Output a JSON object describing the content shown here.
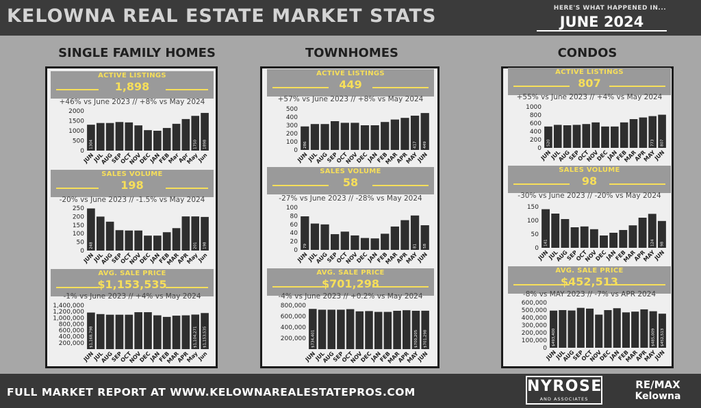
{
  "header": {
    "title": "KELOWNA REAL ESTATE MARKET STATS",
    "subtitle": "HERE'S WHAT HAPPENED IN...",
    "period": "JUNE 2024"
  },
  "footer": {
    "report_text": "FULL MARKET REPORT AT WWW.KELOWNAREALESTATEPROS.COM",
    "brand_name": "NYROSE",
    "brand_sub": "AND ASSOCIATES",
    "remax_line1": "RE/MAX",
    "remax_line2": "Kelowna"
  },
  "colors": {
    "bar": "#2e2e2e",
    "accent": "#f7df5a",
    "header_box": "#9a9a9a",
    "panel_bg": "#efefef"
  },
  "columns": [
    {
      "title": "SINGLE FAMILY HOMES",
      "sections": [
        {
          "label": "ACTIVE LISTINGS",
          "value": "1,898",
          "comparison": "+46% vs June 2023 // +8% vs May 2024"
        },
        {
          "label": "SALES VOLUME",
          "value": "198",
          "comparison": "-20% vs  June 2023 // -1.5% vs May 2024"
        },
        {
          "label": "AVG. SALE PRICE",
          "value": "$1,153,535",
          "comparison": "-1% vs  June 2023 // +4% vs May 2024"
        }
      ]
    },
    {
      "title": "TOWNHOMES",
      "sections": [
        {
          "label": "ACTIVE LISTINGS",
          "value": "449",
          "comparison": "+57% vs June 2023 // +8% vs May 2024"
        },
        {
          "label": "SALES VOLUME",
          "value": "58",
          "comparison": "-27% vs  June 2023 // -28% vs May 2024"
        },
        {
          "label": "AVG. SALE PRICE",
          "value": "$701,298",
          "comparison": "-4% vs  June 2023 // +0.2% vs May 2024"
        }
      ]
    },
    {
      "title": "CONDOS",
      "sections": [
        {
          "label": "ACTIVE LISTINGS",
          "value": "807",
          "comparison": "+55% vs June 2023 // +4% vs May 2024"
        },
        {
          "label": "SALES VOLUME",
          "value": "98",
          "comparison": "-30% vs  June 2023 // -20% vs May 2024"
        },
        {
          "label": "AVG. SALE PRICE",
          "value": "$452,513",
          "comparison": "-8% vs  MAY 2023 // -7% vs APR 2024"
        }
      ]
    }
  ],
  "chart_data": [
    {
      "type": "bar",
      "group": "SINGLE FAMILY HOMES",
      "metric": "ACTIVE LISTINGS",
      "categories": [
        "JUN",
        "JUL",
        "AUG",
        "SEP",
        "OCT",
        "NOV",
        "DEC",
        "JAN",
        "FEB",
        "Mar",
        "Apr",
        "May",
        "Jun"
      ],
      "values": [
        1304,
        1390,
        1390,
        1440,
        1420,
        1270,
        1030,
        1000,
        1140,
        1350,
        1590,
        1750,
        1898
      ],
      "bar_labels": [
        "1304",
        "",
        "",
        "",
        "",
        "",
        "",
        "",
        "",
        "",
        "",
        "1750",
        "1898"
      ],
      "yticks": [
        0,
        500,
        1000,
        1500,
        2000
      ],
      "ytick_labels": [
        "0",
        "500",
        "1000",
        "1500",
        "2000"
      ],
      "ylim": [
        0,
        2000
      ]
    },
    {
      "type": "bar",
      "group": "SINGLE FAMILY HOMES",
      "metric": "SALES VOLUME",
      "categories": [
        "JUN",
        "JUL",
        "AUG",
        "SEP",
        "OCT",
        "NOV",
        "DEC",
        "JAN",
        "FEB",
        "MAR",
        "APR",
        "May",
        "Jun"
      ],
      "values": [
        248,
        200,
        170,
        120,
        118,
        118,
        88,
        88,
        108,
        132,
        201,
        201,
        198
      ],
      "bar_labels": [
        "248",
        "",
        "",
        "",
        "",
        "",
        "",
        "",
        "",
        "",
        "",
        "201",
        "198"
      ],
      "yticks": [
        0,
        50,
        100,
        150,
        200,
        250
      ],
      "ytick_labels": [
        "0",
        "50",
        "100",
        "150",
        "200",
        "250"
      ],
      "ylim": [
        0,
        250
      ]
    },
    {
      "type": "bar",
      "group": "SINGLE FAMILY HOMES",
      "metric": "AVG. SALE PRICE",
      "categories": [
        "JUN",
        "JUL",
        "AUG",
        "SEP",
        "OCT",
        "NOV",
        "DEC",
        "JAN",
        "FEB",
        "MAR",
        "APR",
        "May",
        "Jun"
      ],
      "values": [
        1168798,
        1120000,
        1100000,
        1100000,
        1100000,
        1180000,
        1180000,
        1080000,
        1030000,
        1070000,
        1080000,
        1104271,
        1153535
      ],
      "bar_labels": [
        "$1,168,798",
        "",
        "",
        "",
        "",
        "",
        "",
        "",
        "",
        "",
        "",
        "$1,104,271",
        "$1,153,535"
      ],
      "yticks": [
        200000,
        400000,
        600000,
        800000,
        1000000,
        1200000,
        1400000
      ],
      "ytick_labels": [
        "200,000",
        "400,000",
        "600,000",
        "800,000",
        "1,000,000",
        "1,200,000",
        "1,400,000"
      ],
      "ylim": [
        0,
        1400000
      ]
    },
    {
      "type": "bar",
      "group": "TOWNHOMES",
      "metric": "ACTIVE LISTINGS",
      "categories": [
        "JUN",
        "JUL",
        "AUG",
        "SEP",
        "OCT",
        "NOV",
        "DEC",
        "JAN",
        "FEB",
        "MAR",
        "APR",
        "MAY",
        "JUN"
      ],
      "values": [
        286,
        315,
        315,
        350,
        330,
        330,
        300,
        300,
        340,
        370,
        390,
        417,
        449
      ],
      "bar_labels": [
        "286",
        "",
        "",
        "",
        "",
        "",
        "",
        "",
        "",
        "",
        "",
        "417",
        "449"
      ],
      "yticks": [
        0,
        100,
        200,
        300,
        400,
        500
      ],
      "ytick_labels": [
        "0",
        "100",
        "200",
        "300",
        "400",
        "500"
      ],
      "ylim": [
        0,
        500
      ]
    },
    {
      "type": "bar",
      "group": "TOWNHOMES",
      "metric": "SALES VOLUME",
      "categories": [
        "JUN",
        "JUL",
        "AUG",
        "SEP",
        "OCT",
        "NOV",
        "DEC",
        "JAN",
        "FEB",
        "MAR",
        "APR",
        "MAY",
        "JUN"
      ],
      "values": [
        79,
        62,
        60,
        37,
        43,
        34,
        28,
        27,
        38,
        55,
        70,
        81,
        58
      ],
      "bar_labels": [
        "79",
        "",
        "",
        "",
        "",
        "",
        "",
        "",
        "",
        "",
        "",
        "81",
        "58"
      ],
      "yticks": [
        0,
        20,
        40,
        60,
        80,
        100
      ],
      "ytick_labels": [
        "0",
        "20",
        "40",
        "60",
        "80",
        "100"
      ],
      "ylim": [
        0,
        100
      ]
    },
    {
      "type": "bar",
      "group": "TOWNHOMES",
      "metric": "AVG. SALE PRICE",
      "categories": [
        "JUN",
        "JUL",
        "AUG",
        "SEP",
        "OCT",
        "NOV",
        "DEC",
        "JAN",
        "FEB",
        "MAR",
        "APR",
        "MAY",
        "JUN"
      ],
      "values": [
        734401,
        720000,
        720000,
        720000,
        730000,
        690000,
        695000,
        680000,
        680000,
        700000,
        710000,
        700205,
        701298
      ],
      "bar_labels": [
        "$734,401",
        "",
        "",
        "",
        "",
        "",
        "",
        "",
        "",
        "",
        "",
        "$700,205",
        "$701,298"
      ],
      "yticks": [
        200000,
        400000,
        600000,
        800000
      ],
      "ytick_labels": [
        "200,000",
        "400,000",
        "600,000",
        "800,000"
      ],
      "ylim": [
        0,
        800000
      ]
    },
    {
      "type": "bar",
      "group": "CONDOS",
      "metric": "ACTIVE LISTINGS",
      "categories": [
        "JUN",
        "JUL",
        "AUG",
        "SEP",
        "OCT",
        "NOV",
        "DEC",
        "JAN",
        "FEB",
        "MAR",
        "APR",
        "MAY",
        "JUN"
      ],
      "values": [
        520,
        560,
        550,
        560,
        580,
        620,
        520,
        520,
        620,
        700,
        740,
        773,
        807
      ],
      "bar_labels": [
        "520",
        "",
        "",
        "",
        "",
        "",
        "",
        "",
        "",
        "",
        "",
        "773",
        "807"
      ],
      "yticks": [
        0,
        200,
        400,
        600,
        800,
        1000
      ],
      "ytick_labels": [
        "0",
        "200",
        "400",
        "600",
        "800",
        "1000"
      ],
      "ylim": [
        0,
        1000
      ]
    },
    {
      "type": "bar",
      "group": "CONDOS",
      "metric": "SALES VOLUME",
      "categories": [
        "JUN",
        "JUL",
        "AUG",
        "SEP",
        "OCT",
        "NOV",
        "DEC",
        "JAN",
        "FEB",
        "MAR",
        "APR",
        "MAY",
        "JUN"
      ],
      "values": [
        141,
        125,
        105,
        75,
        78,
        68,
        45,
        55,
        65,
        82,
        110,
        124,
        98
      ],
      "bar_labels": [
        "141",
        "",
        "",
        "",
        "",
        "",
        "",
        "",
        "",
        "",
        "",
        "124",
        "98"
      ],
      "yticks": [
        0,
        50,
        100,
        150
      ],
      "ytick_labels": [
        "0",
        "50",
        "100",
        "150"
      ],
      "ylim": [
        0,
        150
      ]
    },
    {
      "type": "bar",
      "group": "CONDOS",
      "metric": "AVG. SALE PRICE",
      "categories": [
        "JUN",
        "JUL",
        "AUG",
        "SEP",
        "OCT",
        "NOV",
        "DEC",
        "JAN",
        "FEB",
        "MAR",
        "APR",
        "MAY",
        "JUN"
      ],
      "values": [
        493400,
        500000,
        495000,
        530000,
        520000,
        440000,
        500000,
        525000,
        470000,
        480000,
        510000,
        485009,
        452513
      ],
      "bar_labels": [
        "$493,400",
        "",
        "",
        "",
        "",
        "",
        "",
        "",
        "",
        "",
        "",
        "$485,009",
        "$452,513"
      ],
      "yticks": [
        0,
        100000,
        200000,
        300000,
        400000,
        500000,
        600000
      ],
      "ytick_labels": [
        "0",
        "100,000",
        "200,000",
        "300,000",
        "400,000",
        "500,000",
        "600,000"
      ],
      "ylim": [
        0,
        600000
      ]
    }
  ]
}
